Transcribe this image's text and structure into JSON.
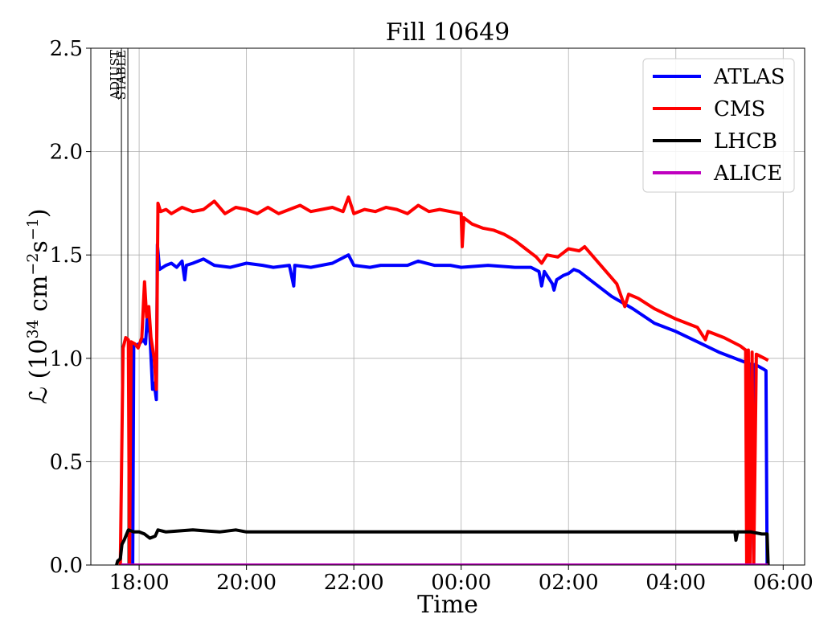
{
  "chart_data": {
    "type": "line",
    "title": "Fill 10649",
    "xlabel": "Time",
    "ylabel_parts": {
      "main": "ℒ (10",
      "exp1": "34",
      "mid": " cm",
      "exp2": "−2",
      "mid2": "s",
      "exp3": "−1",
      "end": ")"
    },
    "x_unit": "hours after 00:00 (negative = previous day)",
    "xlim": [
      -6.9,
      6.4
    ],
    "ylim": [
      0.0,
      2.5
    ],
    "grid": true,
    "legend_position": "upper right",
    "x_ticks": [
      {
        "x": -6,
        "label": "18:00"
      },
      {
        "x": -4,
        "label": "20:00"
      },
      {
        "x": -2,
        "label": "22:00"
      },
      {
        "x": 0,
        "label": "00:00"
      },
      {
        "x": 2,
        "label": "02:00"
      },
      {
        "x": 4,
        "label": "04:00"
      },
      {
        "x": 6,
        "label": "06:00"
      }
    ],
    "y_ticks": [
      {
        "y": 0.0,
        "label": "0.0"
      },
      {
        "y": 0.5,
        "label": "0.5"
      },
      {
        "y": 1.0,
        "label": "1.0"
      },
      {
        "y": 1.5,
        "label": "1.5"
      },
      {
        "y": 2.0,
        "label": "2.0"
      },
      {
        "y": 2.5,
        "label": "2.5"
      }
    ],
    "phase_markers": [
      {
        "x": -6.33,
        "label": "ADJUST"
      },
      {
        "x": -6.21,
        "label": "STABLE"
      }
    ],
    "series": [
      {
        "name": "ATLAS",
        "color": "#0000ff",
        "points": [
          [
            -6.34,
            0.0
          ],
          [
            -6.3,
            0.0
          ],
          [
            -6.28,
            0.0
          ],
          [
            -6.27,
            0.0
          ],
          [
            -6.22,
            0.0
          ],
          [
            -6.12,
            0.0
          ],
          [
            -6.1,
            1.06
          ],
          [
            -6.0,
            1.07
          ],
          [
            -5.92,
            1.09
          ],
          [
            -5.88,
            1.07
          ],
          [
            -5.85,
            1.2
          ],
          [
            -5.8,
            1.12
          ],
          [
            -5.75,
            0.85
          ],
          [
            -5.72,
            0.88
          ],
          [
            -5.68,
            0.8
          ],
          [
            -5.66,
            1.55
          ],
          [
            -5.62,
            1.43
          ],
          [
            -5.5,
            1.45
          ],
          [
            -5.4,
            1.46
          ],
          [
            -5.3,
            1.44
          ],
          [
            -5.2,
            1.47
          ],
          [
            -5.15,
            1.38
          ],
          [
            -5.12,
            1.45
          ],
          [
            -5.0,
            1.46
          ],
          [
            -4.8,
            1.48
          ],
          [
            -4.6,
            1.45
          ],
          [
            -4.3,
            1.44
          ],
          [
            -4.0,
            1.46
          ],
          [
            -3.7,
            1.45
          ],
          [
            -3.5,
            1.44
          ],
          [
            -3.2,
            1.45
          ],
          [
            -3.12,
            1.35
          ],
          [
            -3.1,
            1.45
          ],
          [
            -2.8,
            1.44
          ],
          [
            -2.4,
            1.46
          ],
          [
            -2.1,
            1.5
          ],
          [
            -2.0,
            1.45
          ],
          [
            -1.7,
            1.44
          ],
          [
            -1.5,
            1.45
          ],
          [
            -1.0,
            1.45
          ],
          [
            -0.8,
            1.47
          ],
          [
            -0.5,
            1.45
          ],
          [
            -0.2,
            1.45
          ],
          [
            0.0,
            1.44
          ],
          [
            0.5,
            1.45
          ],
          [
            1.0,
            1.44
          ],
          [
            1.3,
            1.44
          ],
          [
            1.45,
            1.42
          ],
          [
            1.5,
            1.35
          ],
          [
            1.55,
            1.42
          ],
          [
            1.7,
            1.36
          ],
          [
            1.73,
            1.33
          ],
          [
            1.78,
            1.38
          ],
          [
            1.9,
            1.4
          ],
          [
            2.0,
            1.41
          ],
          [
            2.1,
            1.43
          ],
          [
            2.2,
            1.42
          ],
          [
            2.5,
            1.36
          ],
          [
            2.8,
            1.3
          ],
          [
            3.2,
            1.24
          ],
          [
            3.6,
            1.17
          ],
          [
            4.0,
            1.13
          ],
          [
            4.4,
            1.08
          ],
          [
            4.8,
            1.03
          ],
          [
            5.2,
            0.99
          ],
          [
            5.4,
            0.97
          ],
          [
            5.45,
            0.0
          ],
          [
            5.47,
            0.97
          ],
          [
            5.55,
            0.96
          ],
          [
            5.62,
            0.95
          ],
          [
            5.68,
            0.94
          ],
          [
            5.7,
            0.0
          ]
        ]
      },
      {
        "name": "CMS",
        "color": "#ff0000",
        "points": [
          [
            -6.35,
            0.0
          ],
          [
            -6.3,
            1.05
          ],
          [
            -6.25,
            1.1
          ],
          [
            -6.2,
            1.09
          ],
          [
            -6.18,
            0.0
          ],
          [
            -6.15,
            1.08
          ],
          [
            -6.08,
            1.07
          ],
          [
            -6.02,
            1.05
          ],
          [
            -5.95,
            1.1
          ],
          [
            -5.9,
            1.37
          ],
          [
            -5.86,
            1.2
          ],
          [
            -5.82,
            1.25
          ],
          [
            -5.78,
            1.1
          ],
          [
            -5.72,
            1.0
          ],
          [
            -5.68,
            0.85
          ],
          [
            -5.65,
            1.75
          ],
          [
            -5.6,
            1.71
          ],
          [
            -5.5,
            1.72
          ],
          [
            -5.4,
            1.7
          ],
          [
            -5.2,
            1.73
          ],
          [
            -5.0,
            1.71
          ],
          [
            -4.8,
            1.72
          ],
          [
            -4.6,
            1.76
          ],
          [
            -4.4,
            1.7
          ],
          [
            -4.2,
            1.73
          ],
          [
            -4.0,
            1.72
          ],
          [
            -3.8,
            1.7
          ],
          [
            -3.6,
            1.73
          ],
          [
            -3.4,
            1.7
          ],
          [
            -3.2,
            1.72
          ],
          [
            -3.0,
            1.74
          ],
          [
            -2.8,
            1.71
          ],
          [
            -2.6,
            1.72
          ],
          [
            -2.4,
            1.73
          ],
          [
            -2.2,
            1.71
          ],
          [
            -2.1,
            1.78
          ],
          [
            -2.0,
            1.7
          ],
          [
            -1.8,
            1.72
          ],
          [
            -1.6,
            1.71
          ],
          [
            -1.4,
            1.73
          ],
          [
            -1.2,
            1.72
          ],
          [
            -1.0,
            1.7
          ],
          [
            -0.8,
            1.74
          ],
          [
            -0.6,
            1.71
          ],
          [
            -0.4,
            1.72
          ],
          [
            -0.2,
            1.71
          ],
          [
            0.0,
            1.7
          ],
          [
            0.02,
            1.54
          ],
          [
            0.05,
            1.68
          ],
          [
            0.2,
            1.65
          ],
          [
            0.4,
            1.63
          ],
          [
            0.6,
            1.62
          ],
          [
            0.8,
            1.6
          ],
          [
            1.0,
            1.57
          ],
          [
            1.2,
            1.53
          ],
          [
            1.4,
            1.49
          ],
          [
            1.5,
            1.46
          ],
          [
            1.6,
            1.5
          ],
          [
            1.8,
            1.49
          ],
          [
            2.0,
            1.53
          ],
          [
            2.2,
            1.52
          ],
          [
            2.3,
            1.54
          ],
          [
            2.5,
            1.48
          ],
          [
            2.7,
            1.42
          ],
          [
            2.9,
            1.36
          ],
          [
            3.05,
            1.25
          ],
          [
            3.12,
            1.31
          ],
          [
            3.3,
            1.29
          ],
          [
            3.6,
            1.24
          ],
          [
            4.0,
            1.19
          ],
          [
            4.4,
            1.15
          ],
          [
            4.55,
            1.09
          ],
          [
            4.6,
            1.13
          ],
          [
            4.9,
            1.1
          ],
          [
            5.2,
            1.06
          ],
          [
            5.3,
            1.04
          ],
          [
            5.32,
            0.0
          ],
          [
            5.35,
            1.04
          ],
          [
            5.38,
            0.0
          ],
          [
            5.42,
            1.03
          ],
          [
            5.45,
            0.0
          ],
          [
            5.5,
            1.02
          ],
          [
            5.65,
            1.0
          ],
          [
            5.72,
            0.99
          ]
        ]
      },
      {
        "name": "LHCB",
        "color": "#000000",
        "points": [
          [
            -6.42,
            0.0
          ],
          [
            -6.4,
            0.02
          ],
          [
            -6.35,
            0.03
          ],
          [
            -6.32,
            0.1
          ],
          [
            -6.28,
            0.12
          ],
          [
            -6.2,
            0.17
          ],
          [
            -6.1,
            0.16
          ],
          [
            -6.0,
            0.16
          ],
          [
            -5.9,
            0.15
          ],
          [
            -5.8,
            0.13
          ],
          [
            -5.7,
            0.14
          ],
          [
            -5.65,
            0.17
          ],
          [
            -5.5,
            0.16
          ],
          [
            -5.0,
            0.17
          ],
          [
            -4.5,
            0.16
          ],
          [
            -4.2,
            0.17
          ],
          [
            -4.0,
            0.16
          ],
          [
            -3.5,
            0.16
          ],
          [
            -3.0,
            0.16
          ],
          [
            -2.5,
            0.16
          ],
          [
            -2.0,
            0.16
          ],
          [
            -1.5,
            0.16
          ],
          [
            -1.0,
            0.16
          ],
          [
            -0.5,
            0.16
          ],
          [
            0.0,
            0.16
          ],
          [
            0.5,
            0.16
          ],
          [
            1.0,
            0.16
          ],
          [
            1.5,
            0.16
          ],
          [
            2.0,
            0.16
          ],
          [
            2.5,
            0.16
          ],
          [
            3.0,
            0.16
          ],
          [
            3.5,
            0.16
          ],
          [
            4.0,
            0.16
          ],
          [
            4.5,
            0.16
          ],
          [
            5.0,
            0.16
          ],
          [
            5.1,
            0.16
          ],
          [
            5.12,
            0.12
          ],
          [
            5.15,
            0.16
          ],
          [
            5.3,
            0.16
          ],
          [
            5.4,
            0.16
          ],
          [
            5.6,
            0.15
          ],
          [
            5.7,
            0.15
          ],
          [
            5.72,
            0.0
          ]
        ]
      },
      {
        "name": "ALICE",
        "color": "#bf00bf",
        "points": [
          [
            -6.34,
            0.0
          ],
          [
            5.72,
            0.0
          ]
        ]
      }
    ]
  }
}
